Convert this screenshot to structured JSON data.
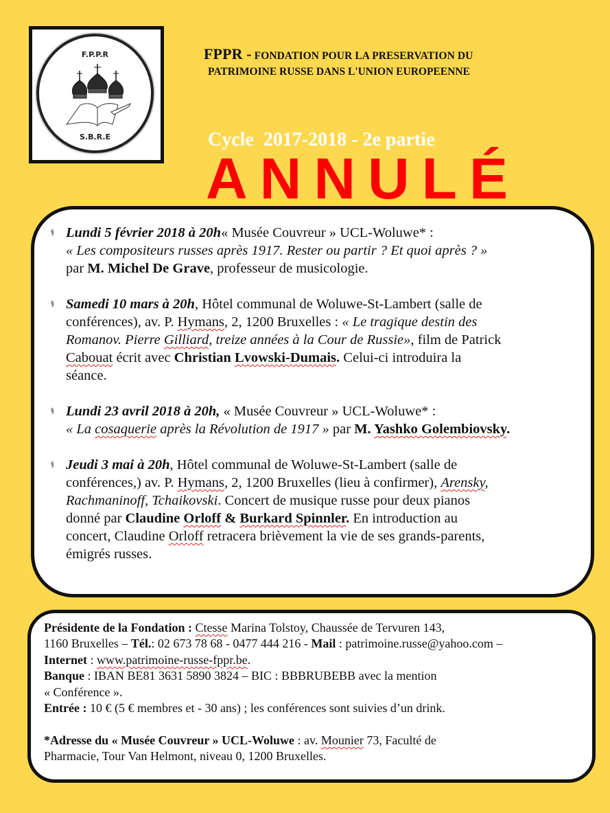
{
  "logo": {
    "top_text": "F.P.P.R",
    "bottom_text": "S.B.R.E"
  },
  "header": {
    "acronym": "FPPR -",
    "line1": "FONDATION POUR LA PRESERVATION DU",
    "line2": "PATRIMOINE RUSSE DANS  L'UNION EUROPEENNE",
    "cycle": "Cycle  2017-2018 - 2e partie"
  },
  "colors": {
    "background": "#FDD84E",
    "cancel_stamp": "#FF0000"
  },
  "bullet_symbol": "§",
  "events": [
    {
      "lines": [
        [
          [
            "bi",
            " Lundi 5 février 2018 à 20h"
          ],
          [
            "",
            "« Musée Couvreur » UCL-Woluwe* :"
          ]
        ],
        [
          [
            "i",
            "« Les compositeurs russes après 1917. Rester ou partir ? Et quoi après ? »"
          ]
        ],
        [
          [
            "",
            "par "
          ],
          [
            "b",
            "M. Michel De Grave"
          ],
          [
            "",
            ", professeur de musicologie."
          ]
        ]
      ]
    },
    {
      "lines": [
        [
          [
            "bi",
            "Samedi 10 mars à 20h"
          ],
          [
            "",
            ", Hôtel communal de Woluwe-St-Lambert (salle de"
          ]
        ],
        [
          [
            "",
            "conférences), av. P. "
          ],
          [
            "sq",
            "Hymans"
          ],
          [
            "",
            ", 2, 1200 Bruxelles : "
          ],
          [
            "i",
            "« Le tragique destin des"
          ]
        ],
        [
          [
            "i",
            "Romanov. Pierre "
          ],
          [
            "isq",
            "Gilliard"
          ],
          [
            "i",
            ", treize années à la Cour de Russie»"
          ],
          [
            "",
            ", film de Patrick"
          ]
        ],
        [
          [
            "sq",
            "Cabouat"
          ],
          [
            "",
            " écrit avec "
          ],
          [
            "b",
            "Christian  "
          ],
          [
            "bsq",
            "Lvowski-Dumais"
          ],
          [
            "b",
            "."
          ],
          [
            "",
            " Celui-ci introduira la"
          ]
        ],
        [
          [
            "",
            "séance."
          ]
        ]
      ]
    },
    {
      "lines": [
        [
          [
            "bi",
            "Lundi 23 avril 2018 à 20h,"
          ],
          [
            "",
            " « Musée Couvreur » UCL-Woluwe* :"
          ]
        ],
        [
          [
            "i",
            "« La "
          ],
          [
            "isq",
            "cosaquerie"
          ],
          [
            "i",
            " après la Révolution de 1917 »"
          ],
          [
            "",
            " par "
          ],
          [
            "b",
            "M. "
          ],
          [
            "bsq",
            "Yashko Golembiovsky"
          ],
          [
            "b",
            "."
          ]
        ]
      ]
    },
    {
      "lines": [
        [
          [
            "bi",
            "Jeudi 3 mai à 20h"
          ],
          [
            "",
            ", Hôtel communal de Woluwe-St-Lambert (salle de"
          ]
        ],
        [
          [
            "",
            "conférences,) av. P. "
          ],
          [
            "sq",
            "Hymans"
          ],
          [
            "",
            ", 2, 1200 Bruxelles (lieu à confirmer), "
          ],
          [
            "isq",
            "Arensky"
          ],
          [
            "i",
            ","
          ]
        ],
        [
          [
            "i",
            "Rachmaninoff,  Tchaikovski"
          ],
          [
            "",
            ". Concert de musique russe pour deux pianos"
          ]
        ],
        [
          [
            "",
            "donné par "
          ],
          [
            "b",
            "Claudine "
          ],
          [
            "bsq",
            "Orloff"
          ],
          [
            "b",
            " & "
          ],
          [
            "bsq",
            "Burkard Spinnler"
          ],
          [
            "b",
            "."
          ],
          [
            "",
            " En introduction au"
          ]
        ],
        [
          [
            "",
            "concert, Claudine "
          ],
          [
            "sq",
            "Orloff"
          ],
          [
            "",
            " retracera brièvement la vie de ses grands-parents,"
          ]
        ],
        [
          [
            "",
            "émigrés  russes."
          ]
        ]
      ]
    }
  ],
  "cancel_stamp": "ANNULÉ",
  "info": {
    "lines": [
      [
        [
          "b",
          "Présidente de la Fondation : "
        ],
        [
          "sq",
          "Ctesse"
        ],
        [
          "",
          "  Marina Tolstoy, Chaussée de Tervuren 143,"
        ]
      ],
      [
        [
          "",
          "1160 Bruxelles – "
        ],
        [
          "b",
          "Tél."
        ],
        [
          "",
          ": 02 673 78 68 - 0477 444 216 - "
        ],
        [
          "b",
          "Mail"
        ],
        [
          "",
          " : patrimoine.russe@yahoo.com –"
        ]
      ],
      [
        [
          "b",
          "Internet"
        ],
        [
          "",
          " : "
        ],
        [
          "sq",
          "www.patrimoine-russe-fppr.be"
        ],
        [
          "",
          "."
        ]
      ],
      [
        [
          "b",
          "Banque"
        ],
        [
          "",
          " : IBAN BE81 3631 5890 3824 – BIC : BBBRUBEBB avec la mention"
        ]
      ],
      [
        [
          "",
          "« Conférence »."
        ]
      ],
      [
        [
          "b",
          "Entrée :"
        ],
        [
          "",
          " 10 € (5 € membres et - 30 ans) ; les conférences sont suivies d’un drink."
        ]
      ],
      [
        [
          "",
          ""
        ]
      ],
      [
        [
          "b",
          "*Adresse du « Musée Couvreur » UCL-Woluwe"
        ],
        [
          "",
          " : av. "
        ],
        [
          "sq",
          "Mounier"
        ],
        [
          "",
          " 73, Faculté de"
        ]
      ],
      [
        [
          "",
          "Pharmacie, Tour Van Helmont, niveau 0, 1200 Bruxelles."
        ]
      ]
    ]
  }
}
